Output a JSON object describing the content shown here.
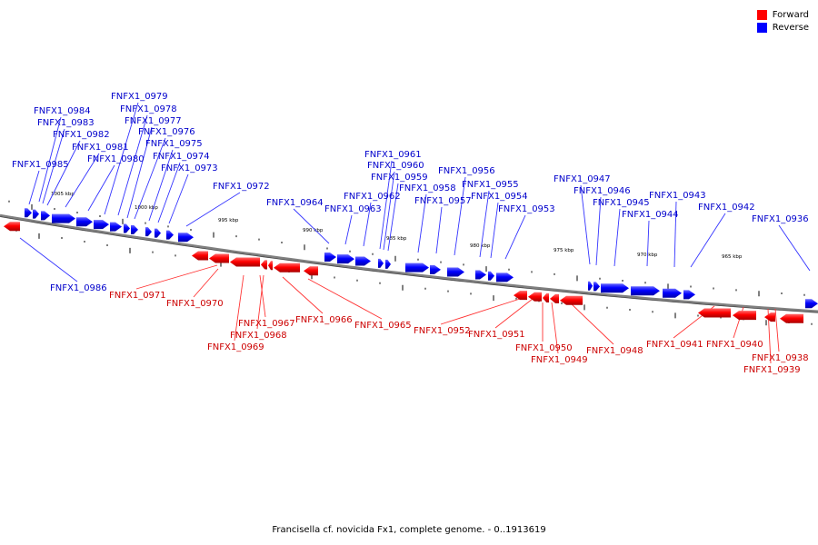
{
  "legend": {
    "forward_label": "Forward",
    "reverse_label": "Reverse",
    "forward_color": "#ff0000",
    "reverse_color": "#0000ff"
  },
  "caption": "Francisella cf. novicida Fx1, complete genome. - 0..1913619",
  "colors": {
    "forward_label": "#cc0000",
    "reverse_label": "#0000cc",
    "backbone": "#808080"
  },
  "scale_labels": [
    "1005 kbp",
    "1000 kbp",
    "995 kbp",
    "990 kbp",
    "985 kbp",
    "980 kbp",
    "975 kbp",
    "970 kbp",
    "965 kbp"
  ],
  "reverse_genes": [
    "FNFX1_0984",
    "FNFX1_0983",
    "FNFX1_0982",
    "FNFX1_0981",
    "FNFX1_0980",
    "FNFX1_0985",
    "FNFX1_0979",
    "FNFX1_0978",
    "FNFX1_0977",
    "FNFX1_0976",
    "FNFX1_0975",
    "FNFX1_0974",
    "FNFX1_0973",
    "FNFX1_0972",
    "FNFX1_0964",
    "FNFX1_0963",
    "FNFX1_0962",
    "FNFX1_0961",
    "FNFX1_0960",
    "FNFX1_0959",
    "FNFX1_0958",
    "FNFX1_0957",
    "FNFX1_0956",
    "FNFX1_0955",
    "FNFX1_0954",
    "FNFX1_0953",
    "FNFX1_0947",
    "FNFX1_0946",
    "FNFX1_0945",
    "FNFX1_0944",
    "FNFX1_0943",
    "FNFX1_0942",
    "FNFX1_0936",
    "FNFX1_0986"
  ],
  "forward_genes": [
    "FNFX1_0971",
    "FNFX1_0970",
    "FNFX1_0967",
    "FNFX1_0968",
    "FNFX1_0969",
    "FNFX1_0966",
    "FNFX1_0965",
    "FNFX1_0952",
    "FNFX1_0951",
    "FNFX1_0950",
    "FNFX1_0949",
    "FNFX1_0948",
    "FNFX1_0941",
    "FNFX1_0940",
    "FNFX1_0938",
    "FNFX1_0939"
  ]
}
